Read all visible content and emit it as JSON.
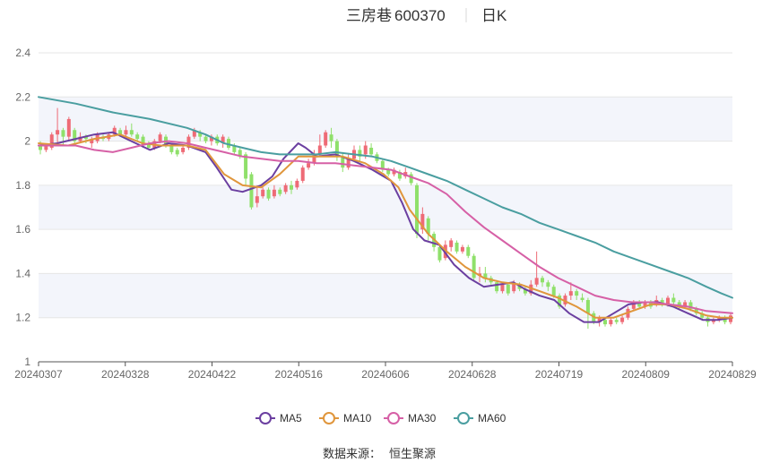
{
  "header": {
    "stock_name": "三房巷",
    "stock_code": "600370",
    "period": "日K"
  },
  "source": {
    "label": "数据来源：",
    "provider": "恒生聚源"
  },
  "colors": {
    "up": "#ee6b76",
    "down": "#8fe06a",
    "MA5": "#6b3fa0",
    "MA10": "#e0963c",
    "MA30": "#d660a6",
    "MA60": "#4a9ea0",
    "band": "#f3f5fb",
    "grid": "#e6e6e6"
  },
  "chart_data": {
    "type": "candlestick",
    "title": "三房巷 600370 日K",
    "x_tick_labels": [
      "20240307",
      "20240328",
      "20240422",
      "20240516",
      "20240606",
      "20240628",
      "20240719",
      "20240809",
      "20240829"
    ],
    "y_ticks": [
      1,
      1.2,
      1.4,
      1.6,
      1.8,
      2,
      2.2,
      2.4
    ],
    "ylim": [
      1,
      2.4
    ],
    "grid": true,
    "legend_position": "bottom-center",
    "series_names": [
      "MA5",
      "MA10",
      "MA30",
      "MA60"
    ],
    "ma_series": {
      "MA5": [
        [
          0,
          1.98
        ],
        [
          5,
          1.99
        ],
        [
          10,
          2.01
        ],
        [
          15,
          2.03
        ],
        [
          20,
          2.04
        ],
        [
          25,
          2.0
        ],
        [
          30,
          1.96
        ],
        [
          35,
          1.99
        ],
        [
          40,
          1.98
        ],
        [
          45,
          1.95
        ],
        [
          48,
          1.88
        ],
        [
          52,
          1.78
        ],
        [
          55,
          1.77
        ],
        [
          60,
          1.8
        ],
        [
          63,
          1.84
        ],
        [
          66,
          1.92
        ],
        [
          70,
          1.99
        ],
        [
          72,
          1.97
        ],
        [
          75,
          1.93
        ],
        [
          80,
          1.94
        ],
        [
          85,
          1.91
        ],
        [
          90,
          1.87
        ],
        [
          95,
          1.82
        ],
        [
          98,
          1.72
        ],
        [
          101,
          1.6
        ],
        [
          104,
          1.55
        ],
        [
          108,
          1.53
        ],
        [
          112,
          1.44
        ],
        [
          116,
          1.38
        ],
        [
          120,
          1.34
        ],
        [
          124,
          1.35
        ],
        [
          128,
          1.36
        ],
        [
          131,
          1.33
        ],
        [
          135,
          1.3
        ],
        [
          139,
          1.28
        ],
        [
          143,
          1.22
        ],
        [
          147,
          1.18
        ],
        [
          151,
          1.18
        ],
        [
          155,
          1.22
        ],
        [
          159,
          1.26
        ],
        [
          163,
          1.27
        ],
        [
          167,
          1.27
        ],
        [
          171,
          1.25
        ],
        [
          175,
          1.22
        ],
        [
          179,
          1.19
        ],
        [
          183,
          1.19
        ],
        [
          187,
          1.2
        ]
      ],
      "MA10": [
        [
          0,
          1.99
        ],
        [
          8,
          1.98
        ],
        [
          15,
          2.01
        ],
        [
          22,
          2.03
        ],
        [
          28,
          1.99
        ],
        [
          33,
          1.98
        ],
        [
          40,
          1.98
        ],
        [
          45,
          1.96
        ],
        [
          50,
          1.85
        ],
        [
          55,
          1.8
        ],
        [
          60,
          1.79
        ],
        [
          65,
          1.85
        ],
        [
          70,
          1.93
        ],
        [
          76,
          1.93
        ],
        [
          82,
          1.93
        ],
        [
          88,
          1.9
        ],
        [
          93,
          1.85
        ],
        [
          97,
          1.79
        ],
        [
          100,
          1.69
        ],
        [
          105,
          1.58
        ],
        [
          110,
          1.5
        ],
        [
          115,
          1.43
        ],
        [
          120,
          1.38
        ],
        [
          125,
          1.36
        ],
        [
          130,
          1.35
        ],
        [
          135,
          1.32
        ],
        [
          140,
          1.29
        ],
        [
          145,
          1.25
        ],
        [
          150,
          1.2
        ],
        [
          155,
          1.2
        ],
        [
          160,
          1.23
        ],
        [
          165,
          1.26
        ],
        [
          170,
          1.26
        ],
        [
          175,
          1.24
        ],
        [
          180,
          1.21
        ],
        [
          184,
          1.2
        ],
        [
          187,
          1.2
        ]
      ],
      "MA30": [
        [
          0,
          1.98
        ],
        [
          10,
          1.98
        ],
        [
          15,
          1.96
        ],
        [
          20,
          1.95
        ],
        [
          25,
          1.97
        ],
        [
          30,
          1.99
        ],
        [
          35,
          2.0
        ],
        [
          40,
          1.99
        ],
        [
          45,
          1.97
        ],
        [
          50,
          1.95
        ],
        [
          55,
          1.93
        ],
        [
          60,
          1.92
        ],
        [
          65,
          1.91
        ],
        [
          70,
          1.91
        ],
        [
          75,
          1.9
        ],
        [
          80,
          1.9
        ],
        [
          85,
          1.89
        ],
        [
          90,
          1.88
        ],
        [
          95,
          1.87
        ],
        [
          100,
          1.84
        ],
        [
          105,
          1.81
        ],
        [
          110,
          1.76
        ],
        [
          115,
          1.68
        ],
        [
          120,
          1.61
        ],
        [
          125,
          1.55
        ],
        [
          130,
          1.49
        ],
        [
          135,
          1.43
        ],
        [
          140,
          1.38
        ],
        [
          145,
          1.34
        ],
        [
          150,
          1.3
        ],
        [
          155,
          1.28
        ],
        [
          160,
          1.27
        ],
        [
          165,
          1.27
        ],
        [
          170,
          1.26
        ],
        [
          175,
          1.25
        ],
        [
          180,
          1.23
        ],
        [
          187,
          1.22
        ]
      ],
      "MA60": [
        [
          0,
          2.2
        ],
        [
          10,
          2.17
        ],
        [
          20,
          2.13
        ],
        [
          30,
          2.1
        ],
        [
          40,
          2.06
        ],
        [
          45,
          2.03
        ],
        [
          50,
          1.99
        ],
        [
          55,
          1.97
        ],
        [
          60,
          1.95
        ],
        [
          65,
          1.94
        ],
        [
          70,
          1.94
        ],
        [
          75,
          1.94
        ],
        [
          80,
          1.95
        ],
        [
          85,
          1.94
        ],
        [
          90,
          1.93
        ],
        [
          95,
          1.91
        ],
        [
          100,
          1.88
        ],
        [
          105,
          1.85
        ],
        [
          110,
          1.82
        ],
        [
          115,
          1.78
        ],
        [
          120,
          1.74
        ],
        [
          125,
          1.7
        ],
        [
          130,
          1.67
        ],
        [
          135,
          1.63
        ],
        [
          140,
          1.6
        ],
        [
          145,
          1.57
        ],
        [
          150,
          1.54
        ],
        [
          155,
          1.5
        ],
        [
          160,
          1.47
        ],
        [
          165,
          1.44
        ],
        [
          170,
          1.41
        ],
        [
          175,
          1.38
        ],
        [
          180,
          1.34
        ],
        [
          184,
          1.31
        ],
        [
          187,
          1.29
        ]
      ]
    },
    "candles_note": "each candle: [day_index, open, close, low, high]",
    "candles": [
      [
        0,
        1.98,
        1.96,
        1.94,
        2.0
      ],
      [
        1,
        1.96,
        1.98,
        1.95,
        1.99
      ],
      [
        2,
        1.97,
        2.03,
        1.96,
        2.04
      ],
      [
        3,
        2.03,
        2.05,
        1.98,
        2.15
      ],
      [
        4,
        2.05,
        2.02,
        1.98,
        2.06
      ],
      [
        5,
        2.02,
        2.1,
        2.0,
        2.11
      ],
      [
        6,
        2.05,
        2.0,
        1.98,
        2.06
      ],
      [
        7,
        2.0,
        2.02,
        1.99,
        2.04
      ],
      [
        8,
        2.02,
        2.01,
        1.99,
        2.03
      ],
      [
        9,
        1.99,
        2.01,
        1.97,
        2.02
      ],
      [
        10,
        2.0,
        2.03,
        1.99,
        2.04
      ],
      [
        11,
        2.02,
        2.01,
        2.0,
        2.03
      ],
      [
        12,
        2.01,
        2.03,
        2.0,
        2.04
      ],
      [
        13,
        2.03,
        2.06,
        2.02,
        2.07
      ],
      [
        14,
        2.05,
        2.03,
        2.02,
        2.06
      ],
      [
        15,
        2.03,
        2.05,
        2.02,
        2.07
      ],
      [
        16,
        2.05,
        2.03,
        2.02,
        2.08
      ],
      [
        17,
        2.03,
        2.01,
        2.0,
        2.04
      ],
      [
        18,
        2.02,
        1.98,
        1.97,
        2.03
      ],
      [
        19,
        1.99,
        1.97,
        1.96,
        2.0
      ],
      [
        20,
        1.97,
        2.0,
        1.96,
        2.01
      ],
      [
        21,
        2.0,
        2.03,
        1.99,
        2.04
      ],
      [
        22,
        2.02,
        1.98,
        1.97,
        2.03
      ],
      [
        23,
        1.98,
        1.95,
        1.94,
        1.99
      ],
      [
        24,
        1.96,
        1.94,
        1.93,
        1.97
      ],
      [
        25,
        1.95,
        1.97,
        1.94,
        1.98
      ],
      [
        26,
        1.97,
        2.02,
        1.96,
        2.03
      ],
      [
        27,
        2.02,
        2.05,
        2.01,
        2.06
      ],
      [
        28,
        2.04,
        2.02,
        2.0,
        2.05
      ],
      [
        29,
        2.02,
        2.0,
        1.99,
        2.03
      ],
      [
        30,
        2.0,
        2.02,
        1.98,
        2.03
      ],
      [
        31,
        2.02,
        1.99,
        1.98,
        2.03
      ],
      [
        32,
        1.99,
        2.02,
        1.97,
        2.03
      ],
      [
        33,
        2.01,
        1.97,
        1.96,
        2.02
      ],
      [
        34,
        1.98,
        1.95,
        1.94,
        1.99
      ],
      [
        35,
        1.96,
        1.93,
        1.92,
        1.97
      ],
      [
        36,
        1.94,
        1.83,
        1.8,
        1.95
      ],
      [
        37,
        1.85,
        1.7,
        1.69,
        1.86
      ],
      [
        38,
        1.72,
        1.75,
        1.7,
        1.8
      ],
      [
        39,
        1.75,
        1.78,
        1.74,
        1.79
      ],
      [
        40,
        1.78,
        1.74,
        1.73,
        1.79
      ],
      [
        41,
        1.75,
        1.78,
        1.74,
        1.8
      ],
      [
        42,
        1.78,
        1.76,
        1.75,
        1.79
      ],
      [
        43,
        1.77,
        1.8,
        1.76,
        1.81
      ],
      [
        44,
        1.8,
        1.78,
        1.76,
        1.82
      ],
      [
        45,
        1.79,
        1.82,
        1.78,
        1.83
      ],
      [
        46,
        1.82,
        1.88,
        1.81,
        1.89
      ],
      [
        47,
        1.88,
        1.9,
        1.87,
        1.92
      ],
      [
        48,
        1.9,
        1.94,
        1.89,
        1.96
      ],
      [
        49,
        1.94,
        1.98,
        1.93,
        2.03
      ],
      [
        50,
        1.98,
        2.04,
        1.97,
        2.05
      ],
      [
        51,
        2.03,
        2.0,
        1.97,
        2.06
      ],
      [
        52,
        2.0,
        1.93,
        1.91,
        2.01
      ],
      [
        53,
        1.93,
        1.88,
        1.86,
        1.95
      ],
      [
        54,
        1.88,
        1.92,
        1.87,
        1.94
      ],
      [
        55,
        1.92,
        1.96,
        1.91,
        1.98
      ],
      [
        56,
        1.96,
        1.93,
        1.91,
        1.98
      ],
      [
        57,
        1.94,
        1.98,
        1.92,
        2.0
      ],
      [
        58,
        1.97,
        1.94,
        1.93,
        1.99
      ],
      [
        59,
        1.94,
        1.91,
        1.9,
        1.95
      ],
      [
        60,
        1.91,
        1.87,
        1.86,
        1.92
      ],
      [
        61,
        1.87,
        1.85,
        1.84,
        1.88
      ],
      [
        62,
        1.85,
        1.87,
        1.84,
        1.88
      ],
      [
        63,
        1.86,
        1.83,
        1.82,
        1.87
      ],
      [
        64,
        1.84,
        1.86,
        1.83,
        1.88
      ],
      [
        65,
        1.85,
        1.81,
        1.8,
        1.86
      ],
      [
        66,
        1.8,
        1.58,
        1.56,
        1.81
      ],
      [
        67,
        1.6,
        1.67,
        1.58,
        1.7
      ],
      [
        68,
        1.65,
        1.58,
        1.55,
        1.66
      ],
      [
        69,
        1.58,
        1.52,
        1.5,
        1.59
      ],
      [
        70,
        1.52,
        1.46,
        1.45,
        1.53
      ],
      [
        71,
        1.47,
        1.53,
        1.46,
        1.55
      ],
      [
        72,
        1.52,
        1.55,
        1.5,
        1.56
      ],
      [
        73,
        1.54,
        1.5,
        1.49,
        1.55
      ],
      [
        74,
        1.5,
        1.52,
        1.49,
        1.53
      ],
      [
        75,
        1.52,
        1.48,
        1.47,
        1.53
      ],
      [
        76,
        1.48,
        1.38,
        1.37,
        1.49
      ],
      [
        77,
        1.39,
        1.4,
        1.36,
        1.43
      ],
      [
        78,
        1.4,
        1.38,
        1.36,
        1.43
      ],
      [
        79,
        1.38,
        1.36,
        1.35,
        1.39
      ],
      [
        80,
        1.36,
        1.32,
        1.31,
        1.37
      ],
      [
        81,
        1.32,
        1.35,
        1.31,
        1.36
      ],
      [
        82,
        1.35,
        1.31,
        1.3,
        1.36
      ],
      [
        83,
        1.32,
        1.36,
        1.31,
        1.37
      ],
      [
        84,
        1.35,
        1.33,
        1.32,
        1.36
      ],
      [
        85,
        1.33,
        1.31,
        1.3,
        1.34
      ],
      [
        86,
        1.31,
        1.35,
        1.3,
        1.37
      ],
      [
        87,
        1.35,
        1.38,
        1.34,
        1.5
      ],
      [
        88,
        1.38,
        1.36,
        1.34,
        1.39
      ],
      [
        89,
        1.36,
        1.34,
        1.32,
        1.37
      ],
      [
        90,
        1.34,
        1.3,
        1.29,
        1.35
      ],
      [
        91,
        1.3,
        1.25,
        1.24,
        1.31
      ],
      [
        92,
        1.26,
        1.3,
        1.25,
        1.31
      ],
      [
        93,
        1.3,
        1.32,
        1.28,
        1.36
      ],
      [
        94,
        1.32,
        1.3,
        1.28,
        1.33
      ],
      [
        95,
        1.29,
        1.28,
        1.27,
        1.31
      ],
      [
        96,
        1.28,
        1.22,
        1.15,
        1.29
      ],
      [
        97,
        1.22,
        1.18,
        1.17,
        1.23
      ],
      [
        98,
        1.18,
        1.2,
        1.16,
        1.21
      ],
      [
        99,
        1.19,
        1.17,
        1.16,
        1.2
      ],
      [
        100,
        1.17,
        1.19,
        1.16,
        1.2
      ],
      [
        101,
        1.19,
        1.18,
        1.17,
        1.2
      ],
      [
        102,
        1.18,
        1.2,
        1.17,
        1.21
      ],
      [
        103,
        1.2,
        1.24,
        1.19,
        1.25
      ],
      [
        104,
        1.24,
        1.27,
        1.23,
        1.28
      ],
      [
        105,
        1.27,
        1.25,
        1.24,
        1.28
      ],
      [
        106,
        1.25,
        1.27,
        1.24,
        1.28
      ],
      [
        107,
        1.27,
        1.25,
        1.24,
        1.28
      ],
      [
        108,
        1.26,
        1.28,
        1.25,
        1.3
      ],
      [
        109,
        1.28,
        1.26,
        1.25,
        1.29
      ],
      [
        110,
        1.26,
        1.29,
        1.25,
        1.3
      ],
      [
        111,
        1.29,
        1.27,
        1.25,
        1.31
      ],
      [
        112,
        1.27,
        1.25,
        1.24,
        1.28
      ],
      [
        113,
        1.25,
        1.27,
        1.24,
        1.28
      ],
      [
        114,
        1.27,
        1.24,
        1.23,
        1.28
      ],
      [
        115,
        1.24,
        1.22,
        1.21,
        1.25
      ],
      [
        116,
        1.22,
        1.2,
        1.19,
        1.23
      ],
      [
        117,
        1.2,
        1.18,
        1.16,
        1.21
      ],
      [
        118,
        1.18,
        1.19,
        1.17,
        1.2
      ],
      [
        119,
        1.19,
        1.2,
        1.18,
        1.21
      ],
      [
        120,
        1.2,
        1.18,
        1.17,
        1.21
      ],
      [
        121,
        1.18,
        1.21,
        1.17,
        1.22
      ]
    ]
  }
}
